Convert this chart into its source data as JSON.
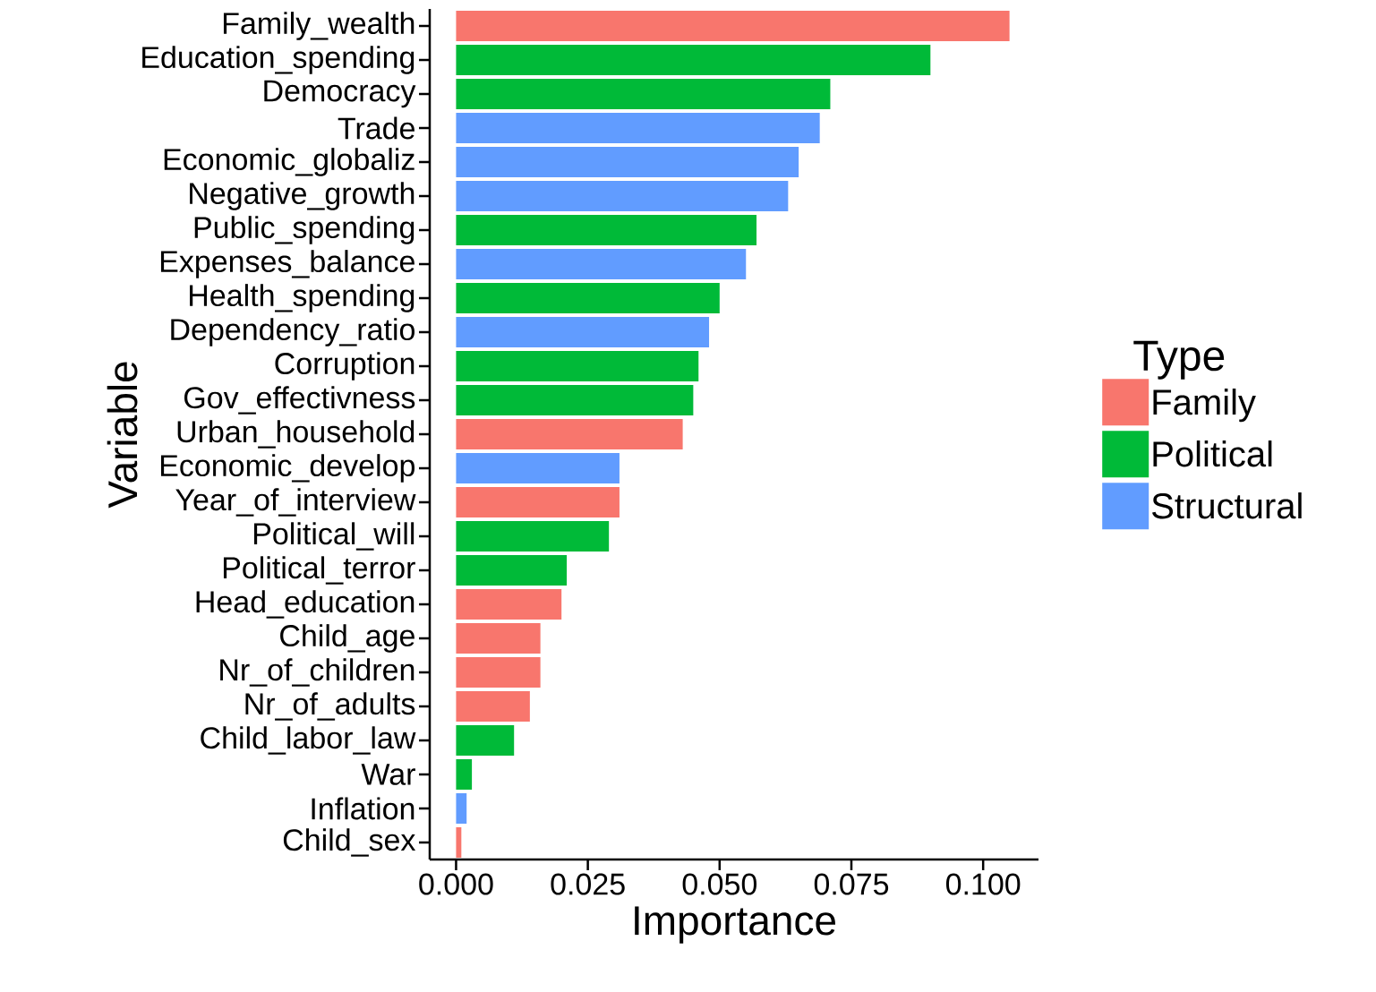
{
  "chart_data": {
    "type": "bar",
    "orientation": "horizontal",
    "xlabel": "Importance",
    "ylabel": "Variable",
    "legend_title": "Type",
    "legend": "right",
    "categories": [
      "Family_wealth",
      "Education_spending",
      "Democracy",
      "Trade",
      "Economic_globaliz",
      "Negative_growth",
      "Public_spending",
      "Expenses_balance",
      "Health_spending",
      "Dependency_ratio",
      "Corruption",
      "Gov_effectivness",
      "Urban_household",
      "Economic_develop",
      "Year_of_interview",
      "Political_will",
      "Political_terror",
      "Head_education",
      "Child_age",
      "Nr_of_children",
      "Nr_of_adults",
      "Child_labor_law",
      "War",
      "Inflation",
      "Child_sex"
    ],
    "series": [
      {
        "name": "Family",
        "color": "#f8766d",
        "values": [
          0.105,
          null,
          null,
          null,
          null,
          null,
          null,
          null,
          null,
          null,
          null,
          null,
          0.043,
          null,
          0.031,
          null,
          null,
          0.02,
          0.016,
          0.016,
          0.014,
          null,
          null,
          null,
          0.001
        ]
      },
      {
        "name": "Political",
        "color": "#00ba38",
        "values": [
          null,
          0.09,
          0.071,
          null,
          null,
          null,
          0.057,
          null,
          0.05,
          null,
          0.046,
          0.045,
          null,
          null,
          null,
          0.029,
          0.021,
          null,
          null,
          null,
          null,
          0.011,
          0.003,
          null,
          null
        ]
      },
      {
        "name": "Structural",
        "color": "#619cff",
        "values": [
          null,
          null,
          null,
          0.069,
          0.065,
          0.063,
          null,
          0.055,
          null,
          0.048,
          null,
          null,
          null,
          0.031,
          null,
          null,
          null,
          null,
          null,
          null,
          null,
          null,
          null,
          0.002,
          null
        ]
      }
    ],
    "xlim": [
      -0.005,
      0.1105
    ],
    "xticks": [
      {
        "value": 0,
        "label": "0.000"
      },
      {
        "value": 0.025,
        "label": "0.025"
      },
      {
        "value": 0.05,
        "label": "0.050"
      },
      {
        "value": 0.075,
        "label": "0.075"
      },
      {
        "value": 0.1,
        "label": "0.100"
      }
    ]
  }
}
